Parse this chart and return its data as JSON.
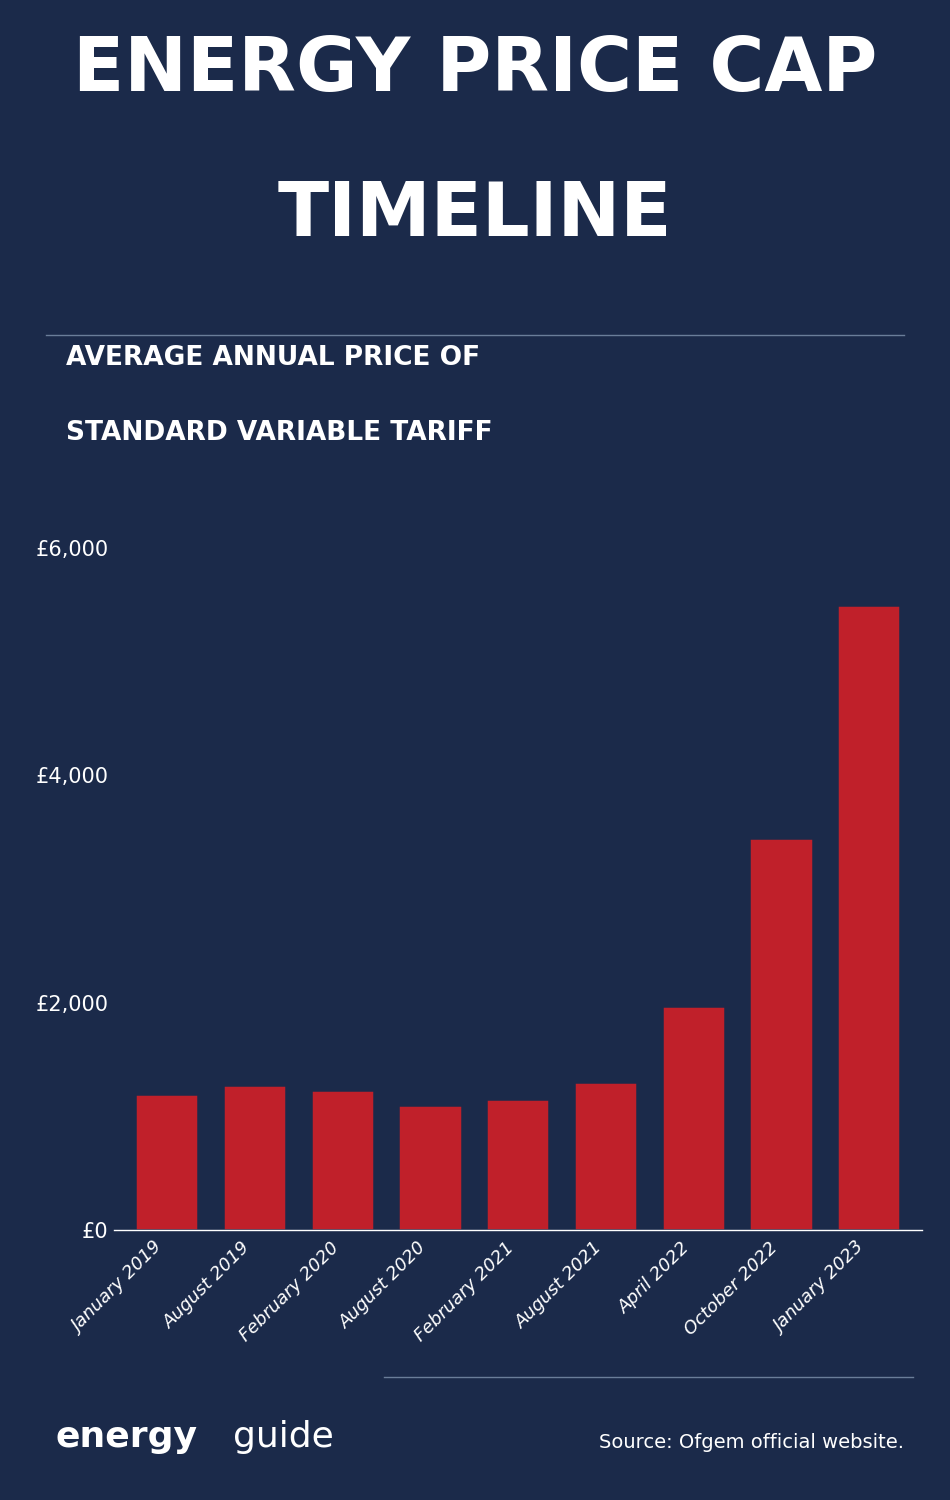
{
  "title_line1": "ENERGY PRICE CAP",
  "title_line2": "TIMELINE",
  "subtitle_line1": "AVERAGE ANNUAL PRICE OF",
  "subtitle_line2": "STANDARD VARIABLE TARIFF",
  "background_color": "#1b2a4a",
  "bar_color": "#c0202a",
  "text_color": "#ffffff",
  "categories": [
    "January 2019",
    "August 2019",
    "February 2020",
    "August 2020",
    "February 2021",
    "August 2021",
    "April 2022",
    "October 2022",
    "January 2023"
  ],
  "values": [
    1200,
    1280,
    1230,
    1100,
    1150,
    1300,
    1970,
    3450,
    5500
  ],
  "ylim": [
    0,
    6600
  ],
  "yticks": [
    0,
    2000,
    4000,
    6000
  ],
  "ytick_labels": [
    "£0",
    "£2,000",
    "£4,000",
    "£6,000"
  ],
  "source_text": "Source: Ofgem official website.",
  "divider_color": "#6a7d99",
  "title_fontsize": 54,
  "subtitle_fontsize": 19,
  "tick_label_fontsize": 13,
  "ytick_fontsize": 15,
  "brand_fontsize": 26,
  "source_fontsize": 14
}
